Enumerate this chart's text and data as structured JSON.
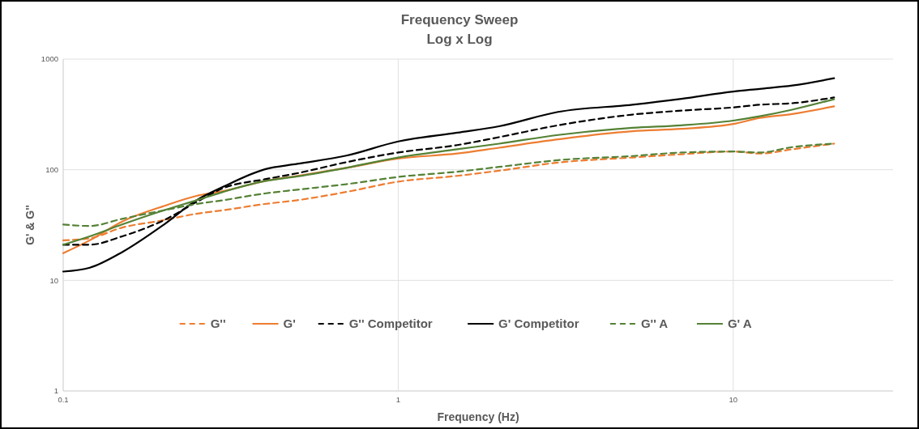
{
  "chart_data": {
    "type": "line",
    "title": "Frequency Sweep",
    "subtitle": "Log x Log",
    "xlabel": "Frequency (Hz)",
    "ylabel": "G' & G''",
    "log": "xy",
    "grid": true,
    "legend": "bottom",
    "x": [
      0.1,
      0.12,
      0.15,
      0.2,
      0.25,
      0.3,
      0.4,
      0.5,
      0.7,
      1,
      1.5,
      2,
      3,
      5,
      7,
      10,
      12,
      15,
      20
    ],
    "xlim": [
      0.1,
      30
    ],
    "xticks": [
      0.1,
      1,
      10
    ],
    "ylim": [
      1,
      1000
    ],
    "yticks": [
      1,
      10,
      100,
      1000
    ],
    "series": [
      {
        "name": "G''",
        "color": "#ed7d31",
        "line_style": "dashed",
        "values": [
          23,
          24,
          30,
          35,
          40,
          43,
          49,
          53,
          63,
          78,
          88,
          98,
          116,
          129,
          138,
          146,
          140,
          153,
          172
        ]
      },
      {
        "name": "G'",
        "color": "#ed7d31",
        "line_style": "solid",
        "values": [
          17.6,
          23,
          34,
          47,
          58,
          64,
          79,
          88,
          104,
          126,
          140,
          158,
          188,
          223,
          234,
          259,
          294,
          319,
          374
        ]
      },
      {
        "name": "G'' Competitor",
        "color": "#000000",
        "line_style": "dashed",
        "values": [
          21,
          21,
          25,
          35,
          51,
          68,
          82,
          93,
          117,
          143,
          167,
          197,
          252,
          315,
          342,
          366,
          387,
          399,
          450
        ]
      },
      {
        "name": "G' Competitor",
        "color": "#000000",
        "line_style": "solid",
        "values": [
          12,
          13,
          18,
          32,
          53,
          70,
          101,
          113,
          134,
          180,
          216,
          247,
          333,
          387,
          437,
          509,
          538,
          577,
          671
        ]
      },
      {
        "name": "G'' A",
        "color": "#548235",
        "line_style": "dashed",
        "values": [
          32,
          31,
          36,
          43,
          49,
          53,
          61,
          66,
          74,
          86,
          96,
          106,
          122,
          133,
          143,
          146,
          143,
          160,
          172
        ]
      },
      {
        "name": "G' A",
        "color": "#548235",
        "line_style": "solid",
        "values": [
          21,
          25,
          32,
          43,
          53,
          63,
          79,
          87,
          104,
          129,
          153,
          172,
          206,
          239,
          252,
          278,
          304,
          349,
          434
        ]
      }
    ]
  }
}
